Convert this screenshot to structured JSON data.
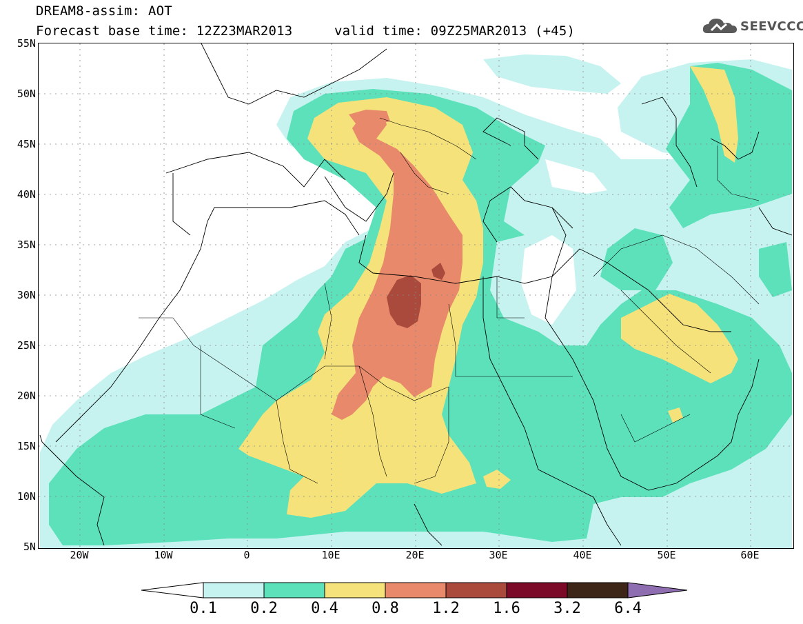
{
  "header": {
    "model_line": "DREAM8-assim: AOT",
    "base_time": "Forecast base time: 12Z23MAR2013",
    "valid_time": "valid time: 09Z25MAR2013 (+45)"
  },
  "logo": {
    "text": "SEEVCCC",
    "icon": "cloud-logo-icon"
  },
  "axes": {
    "lon_labels": [
      "20W",
      "10W",
      "0",
      "10E",
      "20E",
      "30E",
      "40E",
      "50E",
      "60E"
    ],
    "lat_labels": [
      "55N",
      "50N",
      "45N",
      "40N",
      "35N",
      "30N",
      "25N",
      "20N",
      "15N",
      "10N",
      "5N"
    ],
    "lon_range": [
      -25,
      65
    ],
    "lat_range": [
      5,
      55
    ],
    "grid": true
  },
  "colorbar": {
    "labels": [
      "0.1",
      "0.2",
      "0.4",
      "0.8",
      "1.2",
      "1.6",
      "3.2",
      "6.4"
    ],
    "colors": [
      "#ffffff",
      "#c6f3ef",
      "#5ce1bb",
      "#f5e27a",
      "#e7896a",
      "#a94a3c",
      "#7a0a27",
      "#3d2618",
      "#8e6eb0"
    ]
  },
  "palette": {
    "c01": "#c6f3ef",
    "c02": "#5ce1bb",
    "c04": "#f5e27a",
    "c08": "#e7896a",
    "c12": "#a94a3c"
  }
}
